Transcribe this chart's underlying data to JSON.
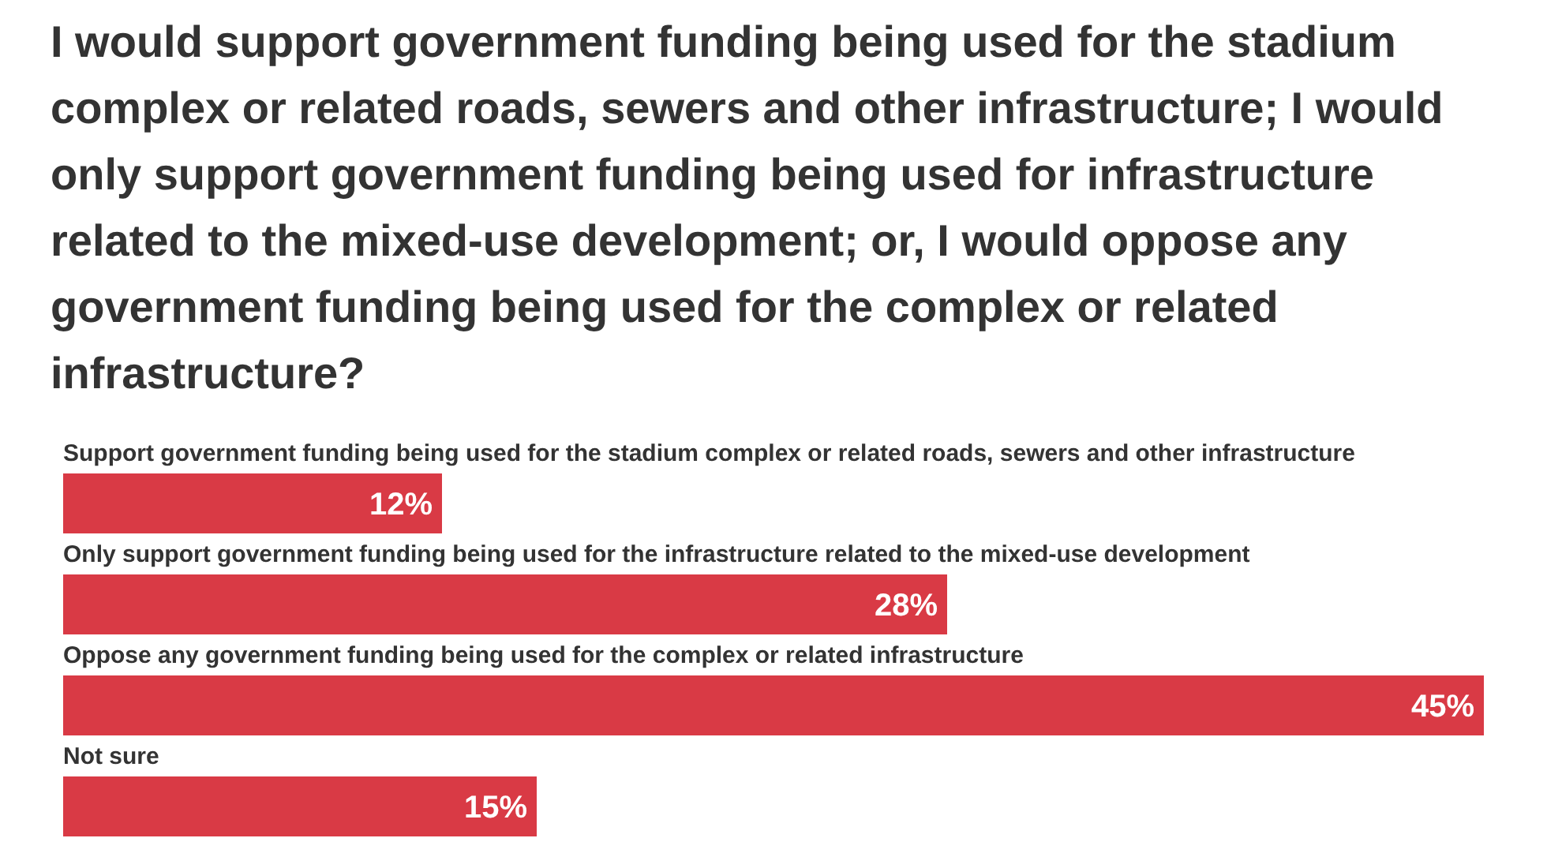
{
  "chart_data": {
    "type": "bar",
    "orientation": "horizontal",
    "title": "I would support government funding being used for the stadium complex or related roads, sewers and other infrastructure; I would only support government funding being used for infrastructure related to the mixed-use development; or, I would oppose any government funding being used for the complex or related infrastructure?",
    "categories": [
      "Support government funding being used for the stadium complex or related roads, sewers and other infrastructure",
      "Only support government funding being used for the infrastructure related to the mixed-use development",
      "Oppose any government funding being used for the complex or related infrastructure",
      "Not sure"
    ],
    "values": [
      12,
      28,
      45,
      15
    ],
    "value_labels": [
      "12%",
      "28%",
      "45%",
      "15%"
    ],
    "color": "#d93a45",
    "xlim": [
      0,
      45
    ]
  }
}
